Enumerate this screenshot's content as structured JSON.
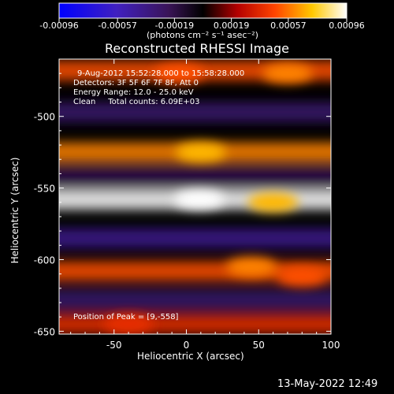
{
  "colorbar": {
    "ticks": [
      "-0.00096",
      "-0.00057",
      "-0.00019",
      "0.00019",
      "0.00057",
      "0.00096"
    ],
    "units": "(photons cm⁻² s⁻¹ asec⁻²)"
  },
  "annotations": {
    "line1": "9-Aug-2012 15:52:28.000 to 15:58:28.000",
    "line2": "Detectors: 3F 5F 6F 7F 8F, Att 0",
    "line3": "Energy Range: 12.0 - 25.0 keV",
    "line4": "Clean     Total counts: 6.09E+03",
    "peak": "Position of Peak = [9,-558]"
  },
  "footer": {
    "timestamp": "13-May-2022 12:49"
  },
  "chart_data": {
    "type": "heatmap",
    "title": "Reconstructed RHESSI Image",
    "xlabel": "Heliocentric X (arcsec)",
    "ylabel": "Heliocentric Y (arcsec)",
    "xlim": [
      -88,
      100
    ],
    "ylim": [
      -652,
      -460
    ],
    "xticks": [
      -50,
      0,
      50,
      100
    ],
    "yticks": [
      -500,
      -550,
      -600,
      -650
    ],
    "colorbar_range": [
      -0.00096,
      0.00096
    ],
    "peak_position": [
      9,
      -558
    ],
    "bands": [
      {
        "y_center": -468,
        "peak_value": 0.0005
      },
      {
        "y_center": -497,
        "peak_value": -0.0003
      },
      {
        "y_center": -525,
        "peak_value": 0.0006
      },
      {
        "y_center": -542,
        "peak_value": -0.0002
      },
      {
        "y_center": -558,
        "peak_value": 0.00096
      },
      {
        "y_center": -585,
        "peak_value": -0.0004
      },
      {
        "y_center": -608,
        "peak_value": 0.0005
      },
      {
        "y_center": -628,
        "peak_value": -0.0003
      },
      {
        "y_center": -645,
        "peak_value": 0.0004
      }
    ],
    "hotspots": [
      {
        "x": 9,
        "y": -558,
        "value": 0.00096
      },
      {
        "x": 60,
        "y": -560,
        "value": 0.0007
      },
      {
        "x": 10,
        "y": -525,
        "value": 0.0007
      },
      {
        "x": -5,
        "y": -470,
        "value": 0.0005
      },
      {
        "x": 70,
        "y": -470,
        "value": 0.0006
      },
      {
        "x": 45,
        "y": -605,
        "value": 0.0006
      },
      {
        "x": 80,
        "y": -612,
        "value": 0.0005
      },
      {
        "x": -40,
        "y": -645,
        "value": 0.0004
      }
    ]
  }
}
